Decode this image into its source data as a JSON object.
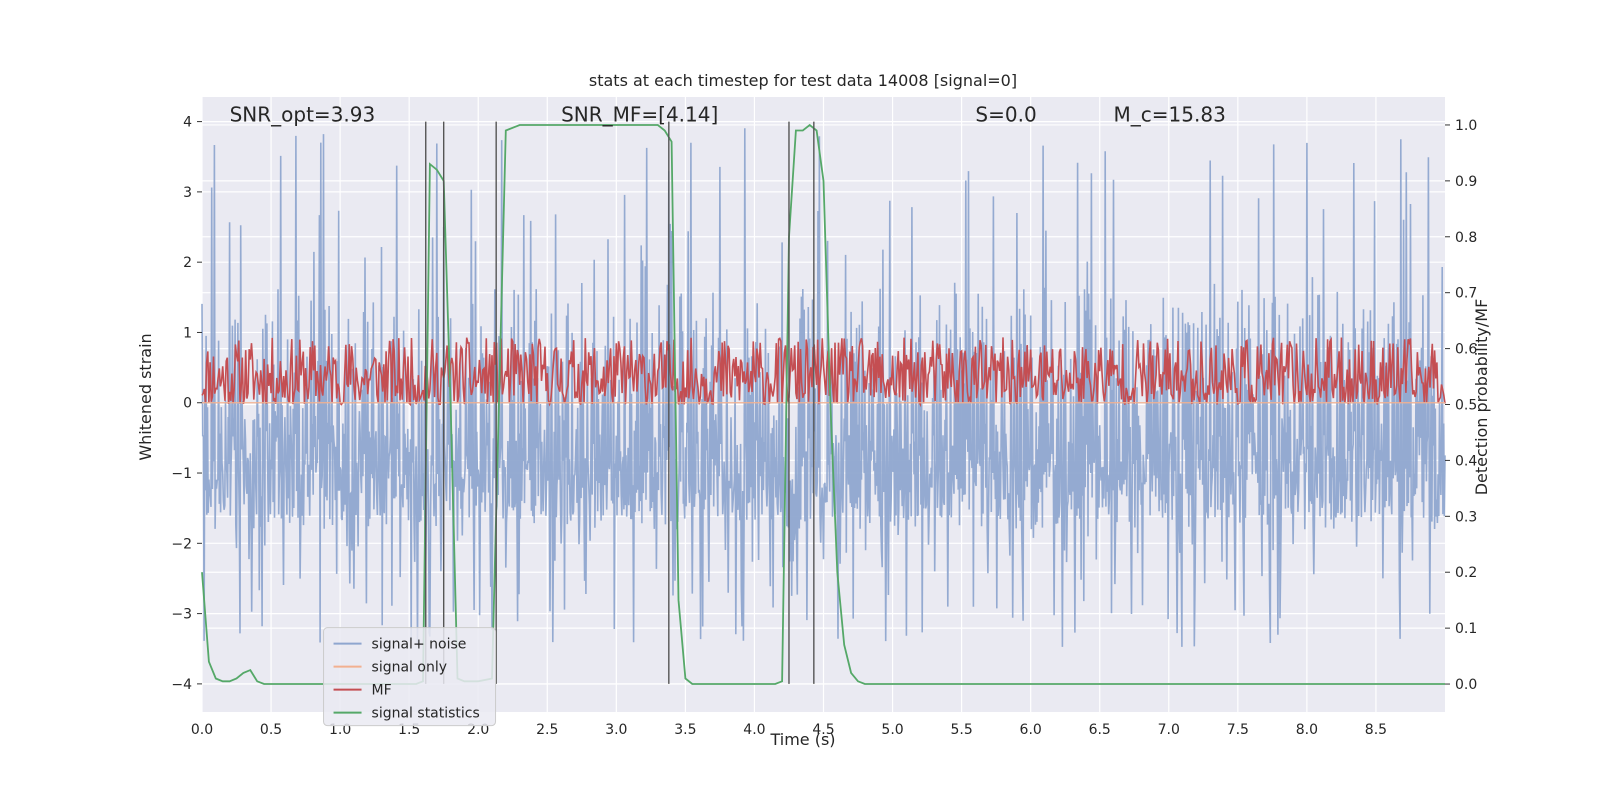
{
  "chart_data": {
    "type": "line",
    "title": "stats at each timestep for test data 14008 [signal=0]",
    "xlabel": "Time (s)",
    "ylabel": "Whitened strain",
    "y2label": "Detection probability/MF",
    "xlim": [
      0.0,
      9.0
    ],
    "ylim": [
      -4.4,
      4.35
    ],
    "y2lim": [
      -0.05,
      1.05
    ],
    "xticks": [
      0.0,
      0.5,
      1.0,
      1.5,
      2.0,
      2.5,
      3.0,
      3.5,
      4.0,
      4.5,
      5.0,
      5.5,
      6.0,
      6.5,
      7.0,
      7.5,
      8.0,
      8.5
    ],
    "xtick_labels": [
      "0.0",
      "0.5",
      "1.0",
      "1.5",
      "2.0",
      "2.5",
      "3.0",
      "3.5",
      "4.0",
      "4.5",
      "5.0",
      "5.5",
      "6.0",
      "6.5",
      "7.0",
      "7.5",
      "8.0",
      "8.5"
    ],
    "yticks": [
      4,
      3,
      2,
      1,
      0,
      -1,
      -2,
      -3,
      -4
    ],
    "ytick_labels": [
      "4",
      "3",
      "2",
      "1",
      "0",
      "−1",
      "−2",
      "−3",
      "−4"
    ],
    "y2ticks": [
      1.0,
      0.9,
      0.8,
      0.7,
      0.6,
      0.5,
      0.4,
      0.3,
      0.2,
      0.1,
      0.0
    ],
    "y2tick_labels": [
      "1.0",
      "0.9",
      "0.8",
      "0.7",
      "0.6",
      "0.5",
      "0.4",
      "0.3",
      "0.2",
      "0.1",
      "0.0"
    ],
    "annotations": [
      {
        "text": "SNR_opt=3.93",
        "x": 0.2
      },
      {
        "text": "SNR_MF=[4.14]",
        "x": 2.6
      },
      {
        "text": "S=0.0",
        "x": 5.6
      },
      {
        "text": "M_c=15.83",
        "x": 6.6
      }
    ],
    "annotation_y": 4.1,
    "legend": {
      "location": "lower-left",
      "entries": [
        {
          "label": "signal+ noise",
          "color": "#8fa6cf"
        },
        {
          "label": "signal only",
          "color": "#f2b090"
        },
        {
          "label": "MF",
          "color": "#c44e52"
        },
        {
          "label": "signal statistics",
          "color": "#55a868"
        }
      ]
    },
    "series": [
      {
        "name": "signal+ noise",
        "axis": "left",
        "style": "noise-band",
        "color": "#8fa6cf",
        "core_range": [
          -1.7,
          1.7
        ],
        "peak_range": [
          -3.5,
          3.95
        ],
        "samples_per_second": 200,
        "seed": 7
      },
      {
        "name": "signal only",
        "axis": "left",
        "style": "line",
        "color": "#f2b090",
        "x": [
          0.0,
          9.0
        ],
        "y": [
          0.0,
          0.0
        ]
      },
      {
        "name": "MF",
        "axis": "right",
        "style": "noisy-line",
        "color": "#c44e52",
        "mean": 0.54,
        "range": [
          0.5,
          0.62
        ],
        "samples_per_second": 120,
        "seed": 11
      },
      {
        "name": "signal statistics",
        "axis": "right",
        "style": "line",
        "color": "#55a868",
        "x": [
          0.0,
          0.05,
          0.1,
          0.15,
          0.2,
          0.25,
          0.3,
          0.35,
          0.4,
          0.45,
          0.5,
          1.55,
          1.6,
          1.65,
          1.7,
          1.75,
          1.8,
          1.85,
          1.9,
          2.0,
          2.1,
          2.15,
          2.2,
          2.3,
          3.3,
          3.35,
          3.4,
          3.45,
          3.5,
          3.55,
          4.15,
          4.2,
          4.25,
          4.3,
          4.35,
          4.4,
          4.45,
          4.5,
          4.55,
          4.6,
          4.65,
          4.7,
          4.75,
          4.8,
          4.85,
          9.0
        ],
        "y": [
          0.2,
          0.04,
          0.01,
          0.005,
          0.005,
          0.01,
          0.02,
          0.025,
          0.005,
          0.0,
          0.0,
          0.0,
          0.005,
          0.93,
          0.92,
          0.9,
          0.5,
          0.01,
          0.005,
          0.005,
          0.01,
          0.5,
          0.99,
          1.0,
          1.0,
          0.99,
          0.97,
          0.15,
          0.01,
          0.0,
          0.0,
          0.005,
          0.8,
          0.99,
          0.99,
          1.0,
          0.99,
          0.9,
          0.5,
          0.2,
          0.07,
          0.02,
          0.005,
          0.0,
          0.0,
          0.0
        ]
      }
    ],
    "vlines": {
      "x": [
        1.62,
        1.75,
        2.13,
        3.38,
        4.25,
        4.43
      ],
      "ymin": -4.0,
      "ymax": 4.0,
      "color": "#555555"
    }
  }
}
